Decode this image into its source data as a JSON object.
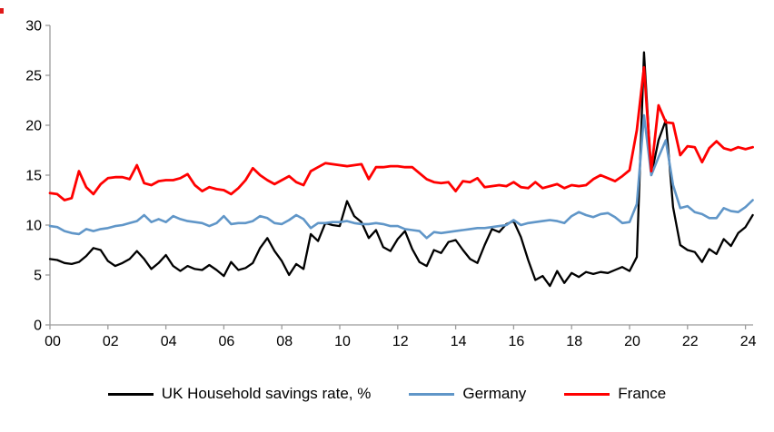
{
  "chart_data": {
    "type": "line",
    "title": "",
    "xlabel": "",
    "ylabel": "",
    "grid": "off",
    "legend_position": "bottom",
    "x_axis": {
      "tick_labels": [
        "00",
        "02",
        "04",
        "06",
        "08",
        "10",
        "12",
        "14",
        "16",
        "18",
        "20",
        "22",
        "24"
      ],
      "tick_years": [
        2000,
        2002,
        2004,
        2006,
        2008,
        2010,
        2012,
        2014,
        2016,
        2018,
        2020,
        2022,
        2024
      ]
    },
    "y_axis": {
      "tick_labels": [
        "0",
        "5",
        "10",
        "15",
        "20",
        "25",
        "30"
      ],
      "tick_values": [
        0,
        5,
        10,
        15,
        20,
        25,
        30
      ],
      "ylim": [
        0,
        30
      ]
    },
    "x_first_point": "1999 Q4",
    "x_last_point": "2024 Q1",
    "x_step": "quarter",
    "axis_color": "#9b9b9b",
    "label_color": "#000000",
    "series": [
      {
        "id": "uk",
        "name": "UK Household savings rate, %",
        "color": "#000000",
        "stroke_width": 2.3,
        "values": [
          6.6,
          6.5,
          6.2,
          6.1,
          6.3,
          6.9,
          7.7,
          7.5,
          6.4,
          5.9,
          6.2,
          6.6,
          7.4,
          6.6,
          5.6,
          6.2,
          7.0,
          5.9,
          5.4,
          5.9,
          5.6,
          5.5,
          6.0,
          5.5,
          4.9,
          6.3,
          5.5,
          5.7,
          6.2,
          7.7,
          8.7,
          7.4,
          6.4,
          5.0,
          6.1,
          5.6,
          9.1,
          8.4,
          10.2,
          10.0,
          9.9,
          12.4,
          10.9,
          10.3,
          8.7,
          9.5,
          7.8,
          7.4,
          8.6,
          9.4,
          7.6,
          6.3,
          5.9,
          7.5,
          7.2,
          8.3,
          8.5,
          7.5,
          6.6,
          6.2,
          8.0,
          9.6,
          9.3,
          10.1,
          10.4,
          8.8,
          6.5,
          4.5,
          4.9,
          3.9,
          5.4,
          4.2,
          5.2,
          4.8,
          5.3,
          5.1,
          5.3,
          5.2,
          5.5,
          5.8,
          5.4,
          6.8,
          27.3,
          15.0,
          18.5,
          20.5,
          11.8,
          8.0,
          7.5,
          7.3,
          6.3,
          7.6,
          7.1,
          8.6,
          7.9,
          9.2,
          9.8,
          11.0
        ]
      },
      {
        "id": "germany",
        "name": "Germany",
        "color": "#6096c8",
        "stroke_width": 2.6,
        "values": [
          9.9,
          9.8,
          9.4,
          9.2,
          9.1,
          9.6,
          9.4,
          9.6,
          9.7,
          9.9,
          10.0,
          10.2,
          10.4,
          11.0,
          10.3,
          10.6,
          10.3,
          10.9,
          10.6,
          10.4,
          10.3,
          10.2,
          9.9,
          10.2,
          10.9,
          10.1,
          10.2,
          10.2,
          10.4,
          10.9,
          10.7,
          10.2,
          10.1,
          10.5,
          11.0,
          10.6,
          9.7,
          10.2,
          10.2,
          10.3,
          10.3,
          10.4,
          10.2,
          10.1,
          10.1,
          10.2,
          10.1,
          9.9,
          9.9,
          9.6,
          9.5,
          9.4,
          8.7,
          9.3,
          9.2,
          9.3,
          9.4,
          9.5,
          9.6,
          9.7,
          9.7,
          9.8,
          9.9,
          10.0,
          10.5,
          10.0,
          10.2,
          10.3,
          10.4,
          10.5,
          10.4,
          10.2,
          10.9,
          11.3,
          11.0,
          10.8,
          11.1,
          11.2,
          10.8,
          10.2,
          10.3,
          12.1,
          21.0,
          15.0,
          16.8,
          18.5,
          14.0,
          11.7,
          11.9,
          11.3,
          11.1,
          10.7,
          10.7,
          11.7,
          11.4,
          11.3,
          11.8,
          12.5
        ]
      },
      {
        "id": "france",
        "name": "France",
        "color": "#ff0000",
        "stroke_width": 2.8,
        "values": [
          13.2,
          13.1,
          12.5,
          12.7,
          15.4,
          13.8,
          13.1,
          14.1,
          14.7,
          14.8,
          14.8,
          14.6,
          16.0,
          14.2,
          14.0,
          14.4,
          14.5,
          14.5,
          14.7,
          15.1,
          14.0,
          13.4,
          13.8,
          13.6,
          13.5,
          13.1,
          13.7,
          14.5,
          15.7,
          15.0,
          14.5,
          14.1,
          14.5,
          14.9,
          14.3,
          14.0,
          15.4,
          15.8,
          16.2,
          16.1,
          16.0,
          15.9,
          16.0,
          16.1,
          14.6,
          15.8,
          15.8,
          15.9,
          15.9,
          15.8,
          15.8,
          15.2,
          14.6,
          14.3,
          14.2,
          14.3,
          13.4,
          14.4,
          14.3,
          14.7,
          13.8,
          13.9,
          14.0,
          13.9,
          14.3,
          13.8,
          13.7,
          14.3,
          13.7,
          13.9,
          14.1,
          13.7,
          14.0,
          13.9,
          14.0,
          14.6,
          15.0,
          14.7,
          14.4,
          14.9,
          15.5,
          19.5,
          25.8,
          15.4,
          22.0,
          20.3,
          20.2,
          17.0,
          17.9,
          17.8,
          16.3,
          17.7,
          18.4,
          17.7,
          17.5,
          17.8,
          17.6,
          17.8
        ]
      }
    ]
  },
  "legend": {
    "items": [
      {
        "label": "UK Household savings rate, %",
        "color": "#000000"
      },
      {
        "label": "Germany",
        "color": "#6096c8"
      },
      {
        "label": "France",
        "color": "#ff0000"
      }
    ]
  }
}
